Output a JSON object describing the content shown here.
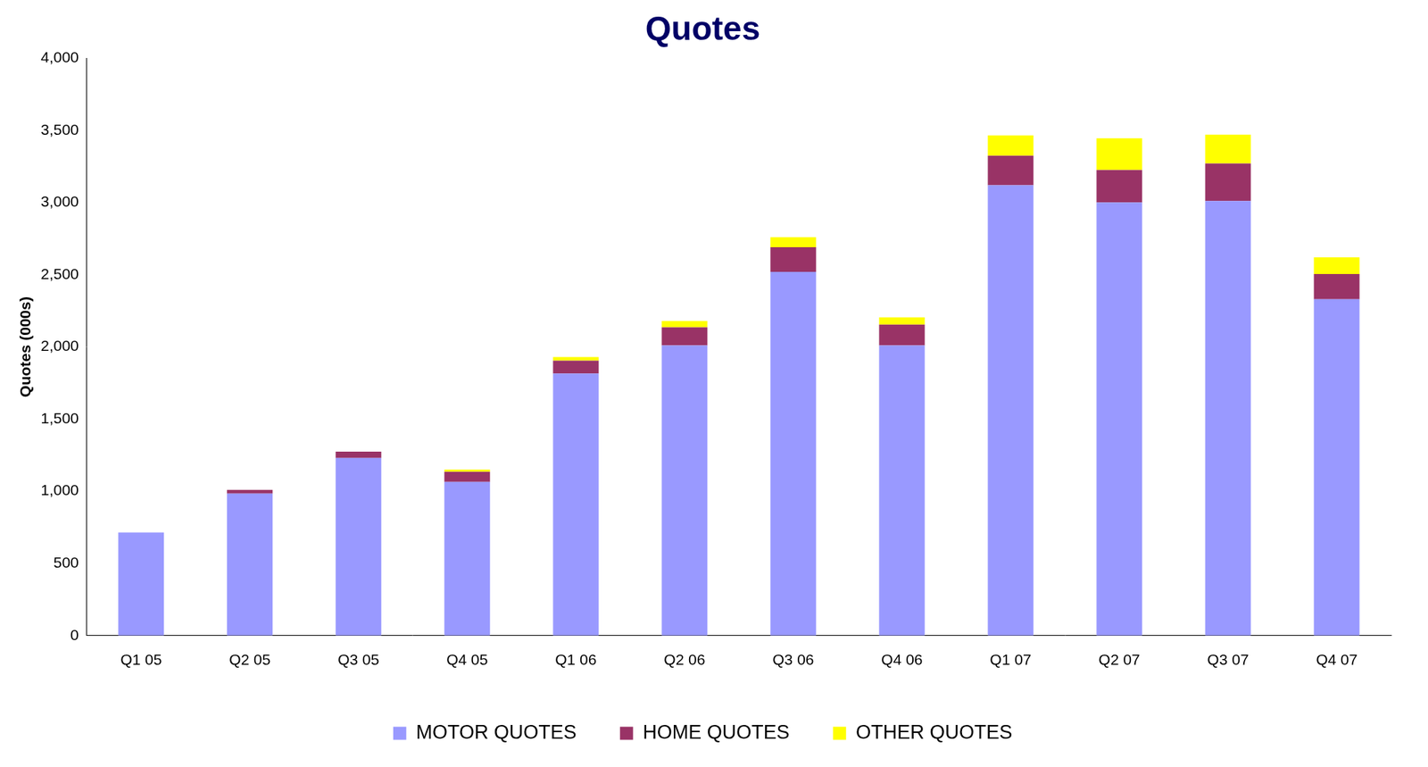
{
  "chart_data": {
    "type": "bar",
    "title": "Quotes",
    "y_label": "Quotes (000s)",
    "categories": [
      "Q1 05",
      "Q2 05",
      "Q3 05",
      "Q4 05",
      "Q1 06",
      "Q2 06",
      "Q3 06",
      "Q4 06",
      "Q1 07",
      "Q2 07",
      "Q3 07",
      "Q4 07"
    ],
    "series": [
      {
        "name": "MOTOR QUOTES",
        "color": "#9999ff",
        "values": [
          715,
          985,
          1230,
          1065,
          1815,
          2010,
          2520,
          2010,
          3120,
          3000,
          3010,
          2330
        ]
      },
      {
        "name": "HOME QUOTES",
        "color": "#993366",
        "values": [
          0,
          25,
          45,
          70,
          90,
          125,
          170,
          145,
          205,
          225,
          260,
          175
        ]
      },
      {
        "name": "OTHER QUOTES",
        "color": "#ffff00",
        "values": [
          0,
          0,
          0,
          15,
          25,
          45,
          70,
          50,
          140,
          220,
          200,
          115
        ]
      }
    ],
    "stacked": true,
    "ylim": [
      0,
      4000
    ],
    "yticks": [
      0,
      500,
      {
        "value": 1000,
        "label": "1,000"
      },
      {
        "value": 1500,
        "label": "1,500"
      },
      {
        "value": 2000,
        "label": "2,000"
      },
      {
        "value": 2500,
        "label": "2,500"
      },
      {
        "value": 3000,
        "label": "3,000"
      },
      {
        "value": 3500,
        "label": "3,500"
      },
      {
        "value": 4000,
        "label": "4,000"
      }
    ],
    "grid": false,
    "legend": "bottom"
  }
}
